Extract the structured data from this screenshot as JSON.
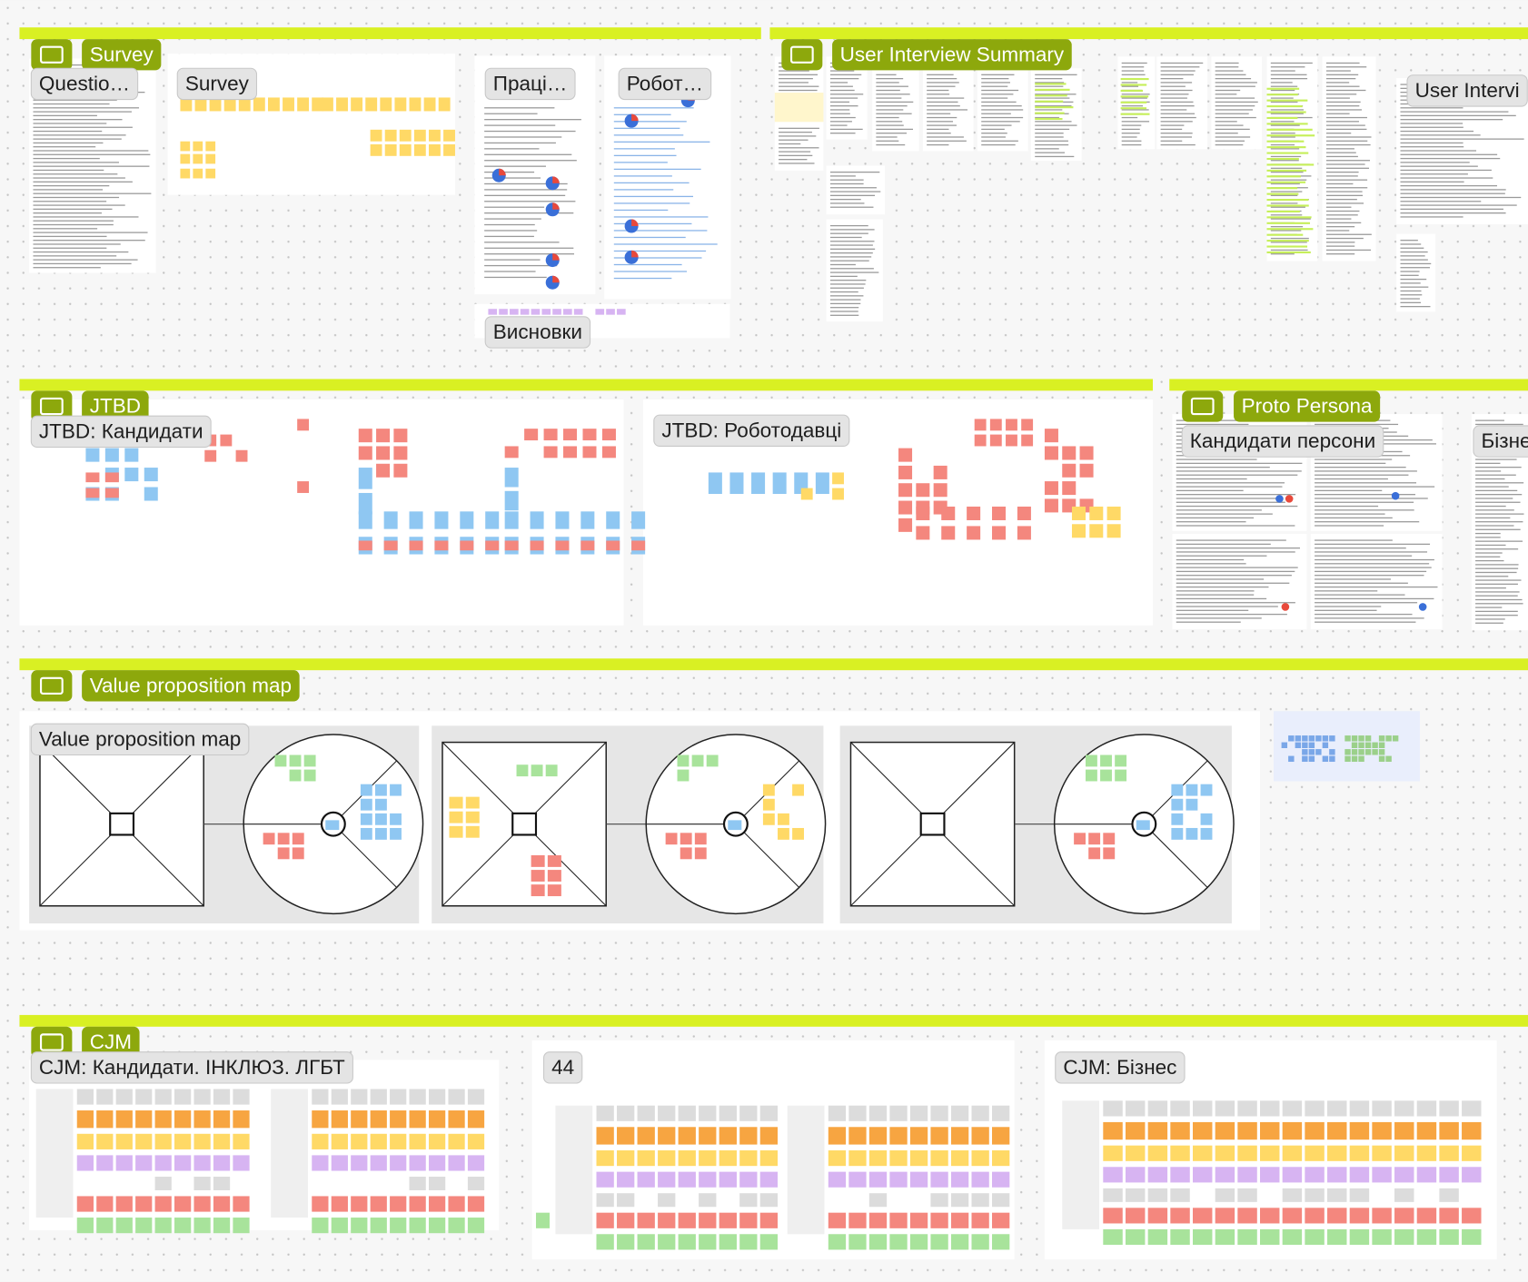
{
  "sections": [
    {
      "title": "Survey",
      "frames": [
        "Questio…",
        "Survey",
        "Праці…",
        "Робот…",
        "Висновки"
      ]
    },
    {
      "title": "User Interview Summary",
      "frames": [
        "User Intervi"
      ]
    },
    {
      "title": "JTBD",
      "frames": [
        "JTBD: Кандидати",
        "JTBD: Роботодавці"
      ]
    },
    {
      "title": "Proto Persona",
      "frames": [
        "Кандидати персони",
        "Бізне"
      ]
    },
    {
      "title": "Value proposition map",
      "frames": [
        "Value proposition map"
      ]
    },
    {
      "title": "CJM",
      "frames": [
        "CJM: Кандидати. ІНКЛЮЗ. ЛГБТ",
        "44",
        "CJM: Бізнес"
      ]
    }
  ]
}
